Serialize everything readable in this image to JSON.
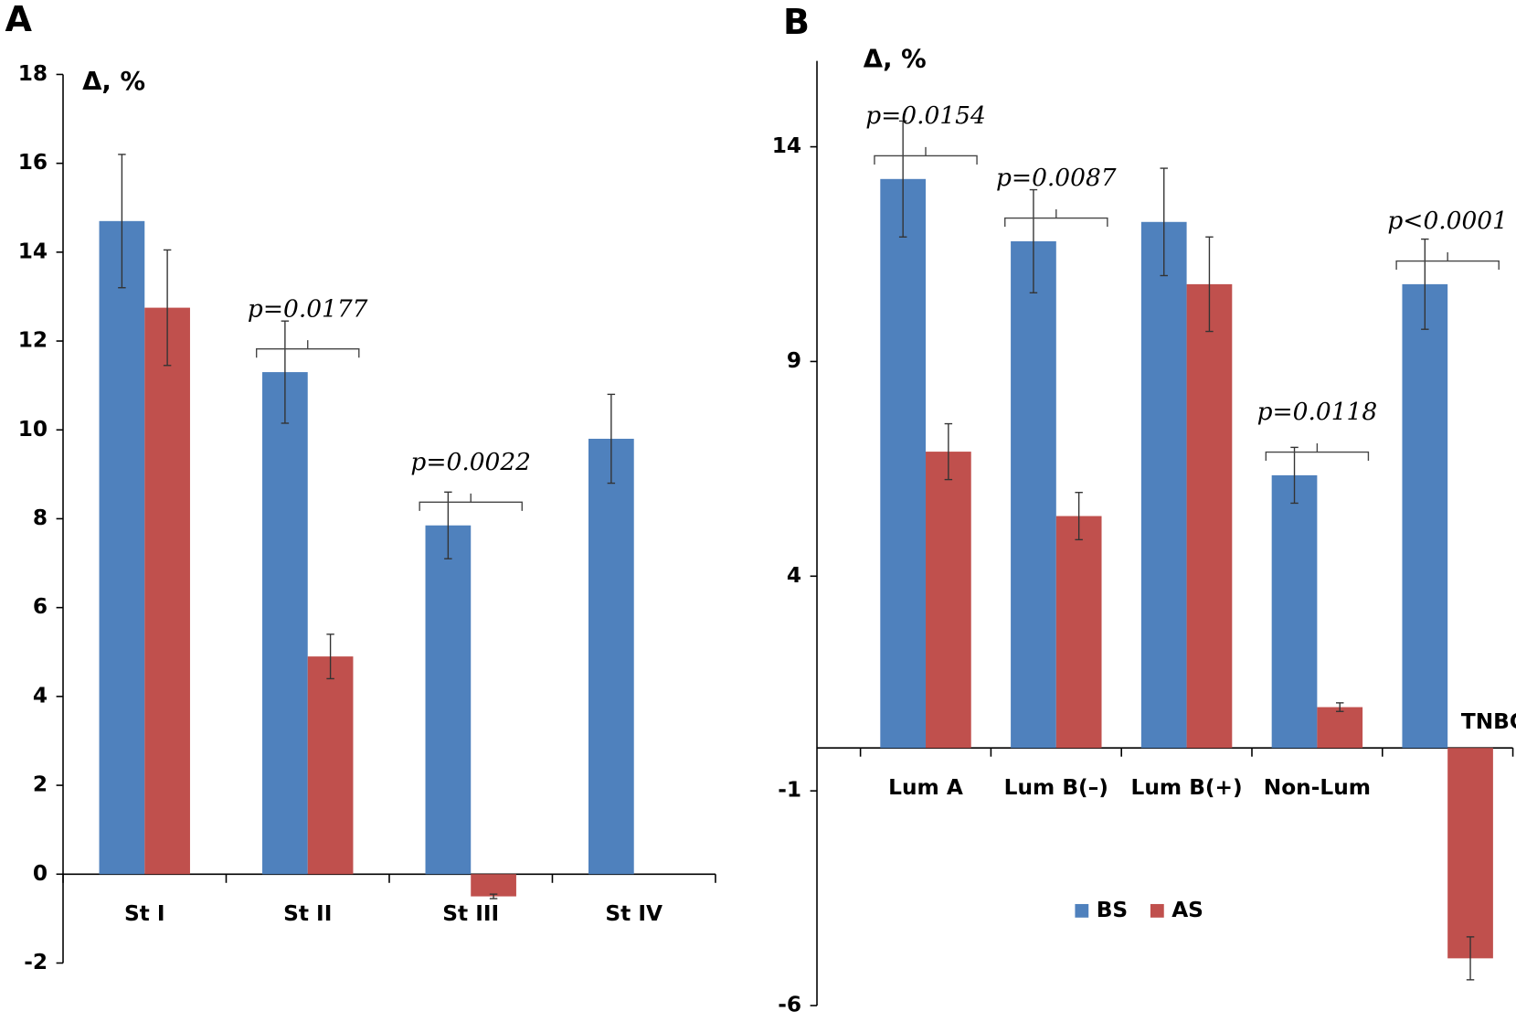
{
  "charts": [
    {
      "type": "bar",
      "panel_label": "A",
      "y_label": "Δ, %",
      "categories": [
        "St I",
        "St II",
        "St III",
        "St IV"
      ],
      "series": [
        {
          "name": "BS",
          "color": "#4f81bd",
          "values": [
            14.7,
            11.3,
            7.85,
            9.8
          ],
          "errors": [
            1.5,
            1.15,
            0.75,
            1.0
          ]
        },
        {
          "name": "AS",
          "color": "#c0504d",
          "values": [
            12.75,
            4.9,
            -0.5,
            null
          ],
          "errors": [
            1.3,
            0.5,
            0.05,
            null
          ]
        }
      ],
      "ylim": [
        -2,
        18
      ],
      "yticks": [
        -2,
        0,
        2,
        4,
        6,
        8,
        10,
        12,
        14,
        16,
        18
      ],
      "annotations": [
        {
          "category": "St II",
          "text": "p=0.0177"
        },
        {
          "category": "St III",
          "text": "p=0.0022"
        }
      ]
    },
    {
      "type": "bar",
      "panel_label": "B",
      "y_label": "Δ, %",
      "categories": [
        "Lum A",
        "Lum B(–)",
        "Lum B(+)",
        "Non-Lum",
        "TNBC"
      ],
      "series": [
        {
          "name": "BS",
          "color": "#4f81bd",
          "values": [
            13.25,
            11.8,
            12.25,
            6.35,
            10.8
          ],
          "errors": [
            1.35,
            1.2,
            1.25,
            0.65,
            1.05
          ]
        },
        {
          "name": "AS",
          "color": "#c0504d",
          "values": [
            6.9,
            5.4,
            10.8,
            0.95,
            -4.9
          ],
          "errors": [
            0.65,
            0.55,
            1.1,
            0.1,
            0.5
          ]
        }
      ],
      "ylim": [
        -6,
        16
      ],
      "yticks": [
        -6,
        -1,
        4,
        9,
        14
      ],
      "legend": true,
      "annotations": [
        {
          "category": "Lum A",
          "text": "p=0.0154"
        },
        {
          "category": "Lum B(–)",
          "text": "p=0.0087"
        },
        {
          "category": "Non-Lum",
          "text": "p=0.0118"
        },
        {
          "category": "TNBC",
          "text": "p<0.0001"
        }
      ]
    }
  ]
}
